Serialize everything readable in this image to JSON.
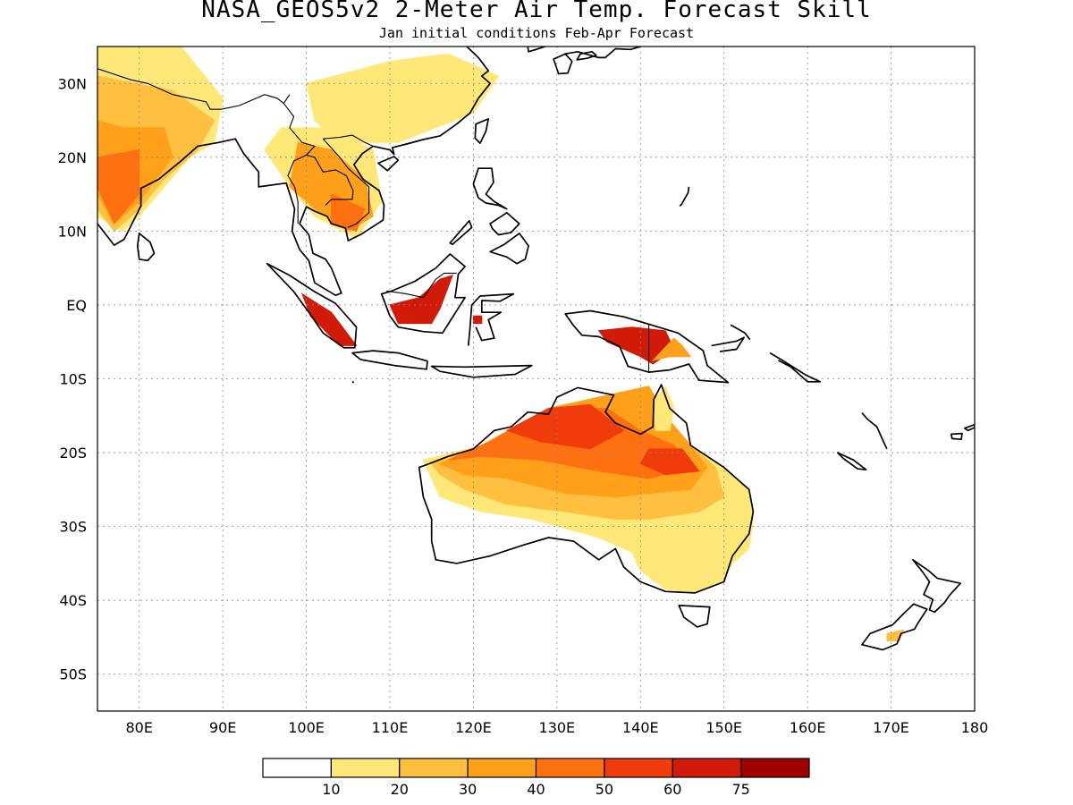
{
  "title": "NASA_GEOS5v2 2-Meter Air Temp. Forecast Skill",
  "subtitle": "Jan initial conditions  Feb-Apr Forecast",
  "map": {
    "lon_range": [
      75,
      180
    ],
    "lat_range": [
      -55,
      35
    ],
    "grid": true,
    "lon_ticks": [
      {
        "value": 80,
        "label": "80E"
      },
      {
        "value": 90,
        "label": "90E"
      },
      {
        "value": 100,
        "label": "100E"
      },
      {
        "value": 110,
        "label": "110E"
      },
      {
        "value": 120,
        "label": "120E"
      },
      {
        "value": 130,
        "label": "130E"
      },
      {
        "value": 140,
        "label": "140E"
      },
      {
        "value": 150,
        "label": "150E"
      },
      {
        "value": 160,
        "label": "160E"
      },
      {
        "value": 170,
        "label": "170E"
      },
      {
        "value": 180,
        "label": "180"
      }
    ],
    "lat_ticks": [
      {
        "value": 30,
        "label": "30N"
      },
      {
        "value": 20,
        "label": "20N"
      },
      {
        "value": 10,
        "label": "10N"
      },
      {
        "value": 0,
        "label": "EQ"
      },
      {
        "value": -10,
        "label": "10S"
      },
      {
        "value": -20,
        "label": "20S"
      },
      {
        "value": -30,
        "label": "30S"
      },
      {
        "value": -40,
        "label": "40S"
      },
      {
        "value": -50,
        "label": "50S"
      }
    ]
  },
  "colorbar": {
    "colors": [
      "#ffffff",
      "#ffe878",
      "#ffc040",
      "#ffa01a",
      "#ff7010",
      "#f03c0a",
      "#d21a08",
      "#a00000"
    ],
    "labels": [
      "10",
      "20",
      "30",
      "40",
      "50",
      "60",
      "75"
    ]
  },
  "skill_colors": {
    "c1": "#ffe878",
    "c2": "#ffc040",
    "c3": "#ffa01a",
    "c4": "#ff7010",
    "c5": "#f03c0a",
    "c6": "#d21a08"
  }
}
